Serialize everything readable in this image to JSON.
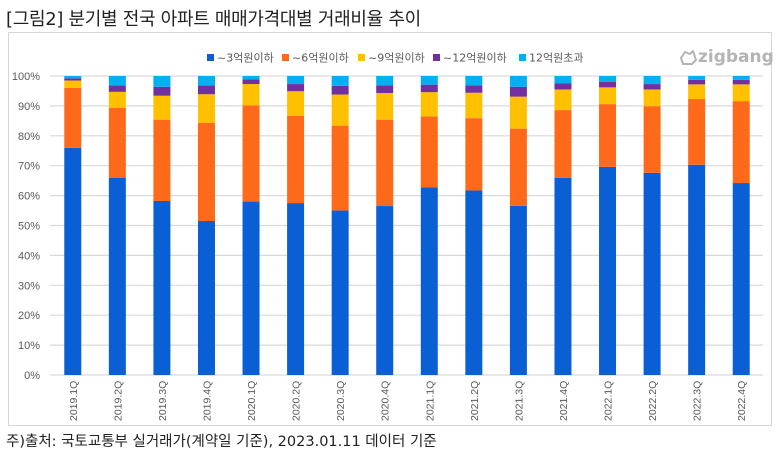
{
  "title": "[그림2] 분기별 전국 아파트 매매가격대별 거래비율 추이",
  "footnote": "주)출처: 국토교통부 실거래가(계약일 기준), 2023.01.11 데이터 기준",
  "logo": {
    "text": "zigbang",
    "icon": "zigbang-logo-icon"
  },
  "chart_data": {
    "type": "bar",
    "stacked": true,
    "title": "",
    "xlabel": "",
    "ylabel": "",
    "ylim": [
      0,
      100
    ],
    "y_ticks": [
      "0%",
      "10%",
      "20%",
      "30%",
      "40%",
      "50%",
      "60%",
      "70%",
      "80%",
      "90%",
      "100%"
    ],
    "y_tick_values": [
      0,
      10,
      20,
      30,
      40,
      50,
      60,
      70,
      80,
      90,
      100
    ],
    "grid": true,
    "legend_position": "top-center",
    "categories": [
      "2019.1Q",
      "2019.2Q",
      "2019.3Q",
      "2019.4Q",
      "2020.1Q",
      "2020.2Q",
      "2020.3Q",
      "2020.4Q",
      "2021.1Q",
      "2021.2Q",
      "2021.3Q",
      "2021.4Q",
      "2022.1Q",
      "2022.2Q",
      "2022.3Q",
      "2022.4Q"
    ],
    "series": [
      {
        "name": "~3억원이하",
        "color": "#0a5fd4",
        "values": [
          76.0,
          66.0,
          58.2,
          51.5,
          58.0,
          57.5,
          55.0,
          56.5,
          62.7,
          61.7,
          56.6,
          65.9,
          69.6,
          67.6,
          70.3,
          64.2
        ]
      },
      {
        "name": "~6억원이하",
        "color": "#ff6a1a",
        "values": [
          20.0,
          23.4,
          27.2,
          32.8,
          32.2,
          29.2,
          28.4,
          28.9,
          23.8,
          24.2,
          25.8,
          22.7,
          21.0,
          22.3,
          22.0,
          27.4
        ]
      },
      {
        "name": "~9억원이하",
        "color": "#ffc000",
        "values": [
          2.5,
          5.3,
          8.0,
          9.6,
          7.1,
          8.2,
          10.4,
          8.9,
          8.1,
          8.5,
          10.7,
          6.9,
          5.6,
          5.6,
          4.9,
          5.6
        ]
      },
      {
        "name": "~12억원이하",
        "color": "#7030a0",
        "values": [
          0.7,
          2.1,
          3.0,
          2.9,
          1.6,
          2.4,
          2.9,
          2.6,
          2.5,
          2.5,
          3.3,
          2.0,
          1.8,
          1.8,
          1.5,
          1.5
        ]
      },
      {
        "name": "12억원초과",
        "color": "#00b0f0",
        "values": [
          0.8,
          3.2,
          3.6,
          3.2,
          1.1,
          2.7,
          3.3,
          3.1,
          2.9,
          3.1,
          3.6,
          2.5,
          2.0,
          2.7,
          1.3,
          1.3
        ]
      }
    ]
  }
}
